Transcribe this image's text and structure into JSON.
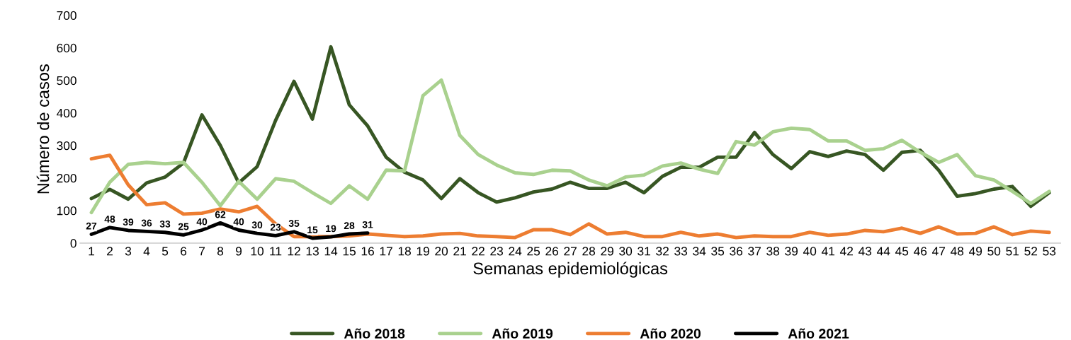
{
  "chart_data": {
    "type": "line",
    "xlabel": "Semanas epidemiológicas",
    "ylabel": "Número de casos",
    "categories": [
      "1",
      "2",
      "3",
      "4",
      "5",
      "6",
      "7",
      "8",
      "9",
      "10",
      "11",
      "12",
      "13",
      "14",
      "15",
      "16",
      "17",
      "18",
      "19",
      "20",
      "21",
      "22",
      "23",
      "24",
      "25",
      "26",
      "27",
      "28",
      "29",
      "30",
      "31",
      "32",
      "33",
      "34",
      "35",
      "36",
      "37",
      "38",
      "39",
      "40",
      "41",
      "42",
      "43",
      "44",
      "45",
      "46",
      "47",
      "48",
      "49",
      "50",
      "51",
      "52",
      "53"
    ],
    "ylim": [
      0,
      700
    ],
    "yticks": [
      0,
      100,
      200,
      300,
      400,
      500,
      600,
      700
    ],
    "grid": false,
    "legend": "bottom",
    "marker": "none",
    "line_style": "solid",
    "series": [
      {
        "name": "Año 2018",
        "color": "#375623",
        "values": [
          137,
          165,
          135,
          185,
          203,
          246,
          394,
          300,
          185,
          235,
          377,
          497,
          381,
          603,
          425,
          360,
          264,
          218,
          194,
          137,
          198,
          155,
          126,
          139,
          157,
          166,
          187,
          168,
          168,
          187,
          155,
          205,
          233,
          233,
          264,
          264,
          340,
          272,
          229,
          281,
          266,
          283,
          272,
          224,
          279,
          285,
          224,
          144,
          152,
          166,
          174,
          113,
          155
        ]
      },
      {
        "name": "Año 2019",
        "color": "#a9d18e",
        "values": [
          94,
          187,
          242,
          248,
          244,
          248,
          187,
          115,
          190,
          135,
          198,
          190,
          155,
          122,
          176,
          135,
          224,
          222,
          453,
          501,
          331,
          272,
          240,
          216,
          211,
          224,
          222,
          194,
          176,
          203,
          209,
          237,
          246,
          227,
          214,
          312,
          301,
          342,
          353,
          349,
          314,
          314,
          285,
          290,
          316,
          279,
          248,
          272,
          207,
          194,
          159,
          122,
          159
        ]
      },
      {
        "name": "Año 2020",
        "color": "#ed7d31",
        "values": [
          259,
          270,
          179,
          118,
          124,
          89,
          92,
          105,
          96,
          113,
          59,
          20,
          20,
          20,
          22,
          28,
          24,
          20,
          22,
          28,
          30,
          22,
          20,
          17,
          41,
          41,
          26,
          59,
          28,
          33,
          20,
          20,
          33,
          22,
          28,
          17,
          22,
          20,
          20,
          33,
          24,
          28,
          39,
          35,
          46,
          30,
          50,
          28,
          30,
          50,
          26,
          37,
          33
        ]
      },
      {
        "name": "Año 2021",
        "color": "#000000",
        "values": [
          27,
          48,
          39,
          36,
          33,
          25,
          40,
          62,
          40,
          30,
          23,
          35,
          15,
          19,
          28,
          31,
          null,
          null,
          null,
          null,
          null,
          null,
          null,
          null,
          null,
          null,
          null,
          null,
          null,
          null,
          null,
          null,
          null,
          null,
          null,
          null,
          null,
          null,
          null,
          null,
          null,
          null,
          null,
          null,
          null,
          null,
          null,
          null,
          null,
          null,
          null,
          null,
          null
        ],
        "value_labels": [
          "27",
          "48",
          "39",
          "36",
          "33",
          "25",
          "40",
          "62",
          "40",
          "30",
          "23",
          "35",
          "15",
          "19",
          "28",
          "31",
          null,
          null,
          null,
          null,
          null,
          null,
          null,
          null,
          null,
          null,
          null,
          null,
          null,
          null,
          null,
          null,
          null,
          null,
          null,
          null,
          null,
          null,
          null,
          null,
          null,
          null,
          null,
          null,
          null,
          null,
          null,
          null,
          null,
          null,
          null,
          null,
          null
        ]
      }
    ]
  }
}
